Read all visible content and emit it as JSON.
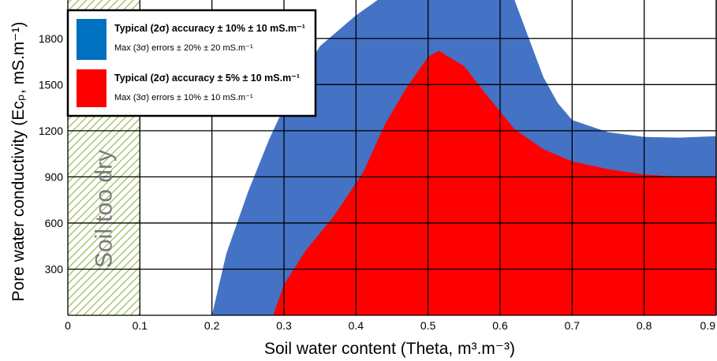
{
  "chart_data": {
    "type": "area",
    "xlabel": "Soil water content (Theta, m³.m⁻³)",
    "ylabel": "Pore water conductivity (Ecₚ, mS.m⁻¹)",
    "xlim": [
      0,
      0.9
    ],
    "ylim": [
      0,
      2050
    ],
    "x_ticks": [
      "0",
      "0.1",
      "0.2",
      "0.3",
      "0.4",
      "0.5",
      "0.6",
      "0.7",
      "0.8",
      "0.9"
    ],
    "y_ticks": [
      "300",
      "600",
      "900",
      "1200",
      "1500",
      "1800"
    ],
    "y_tick_values": [
      300,
      600,
      900,
      1200,
      1500,
      1800
    ],
    "grid": true,
    "legend_position": "top-left",
    "colors": {
      "blue": "#4472c4",
      "red": "#ff0000",
      "hatch": "#9bbb59"
    },
    "regions": [
      {
        "name": "Typical (2σ) accuracy ± 10% ± 10 mS.m⁻¹",
        "subtitle": "Max (3σ) errors ± 20% ± 20 mS.m⁻¹",
        "color": "#4472c4",
        "legend_color": "#0070c0",
        "left_boundary": {
          "x": [
            0.2,
            0.22,
            0.25,
            0.28,
            0.31,
            0.35,
            0.4,
            0.43
          ],
          "y": [
            0,
            400,
            800,
            1150,
            1450,
            1750,
            1950,
            2050
          ]
        },
        "right_boundary": {
          "x": [
            0.62,
            0.64,
            0.66,
            0.68,
            0.7,
            0.75,
            0.8,
            0.85,
            0.9
          ],
          "y": [
            2050,
            1800,
            1550,
            1380,
            1270,
            1190,
            1160,
            1155,
            1165
          ]
        }
      },
      {
        "name": "Typical (2σ) accuracy ± 5% ± 10 mS.m⁻¹",
        "subtitle": "Max (3σ) errors ± 10% ± 10 mS.m⁻¹",
        "color": "#ff0000",
        "legend_color": "#ff0000",
        "left_boundary": {
          "x": [
            0.285,
            0.3,
            0.33,
            0.37,
            0.41,
            0.44,
            0.47,
            0.5,
            0.515
          ],
          "y": [
            0,
            200,
            420,
            650,
            930,
            1240,
            1480,
            1680,
            1720
          ]
        },
        "right_boundary": {
          "x": [
            0.515,
            0.55,
            0.58,
            0.62,
            0.66,
            0.7,
            0.75,
            0.8,
            0.85,
            0.9
          ],
          "y": [
            1720,
            1620,
            1440,
            1210,
            1080,
            1000,
            950,
            915,
            900,
            900
          ]
        }
      }
    ],
    "annotation": {
      "label": "Soil too dry",
      "x_range": [
        0,
        0.1
      ]
    }
  }
}
